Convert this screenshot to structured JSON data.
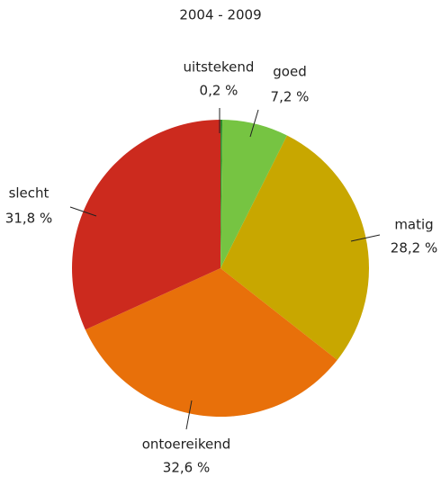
{
  "chart_data": {
    "type": "pie",
    "title": "2004 - 2009",
    "categories": [
      "uitstekend",
      "goed",
      "matig",
      "ontoereikend",
      "slecht"
    ],
    "values": [
      0.2,
      7.2,
      28.2,
      32.6,
      31.8
    ],
    "value_labels": [
      "0,2 %",
      "7,2 %",
      "28,2 %",
      "32,6 %",
      "31,8 %"
    ],
    "colors": [
      "#2e8b2e",
      "#76c442",
      "#c8a700",
      "#e8700a",
      "#cc2a1e"
    ]
  }
}
